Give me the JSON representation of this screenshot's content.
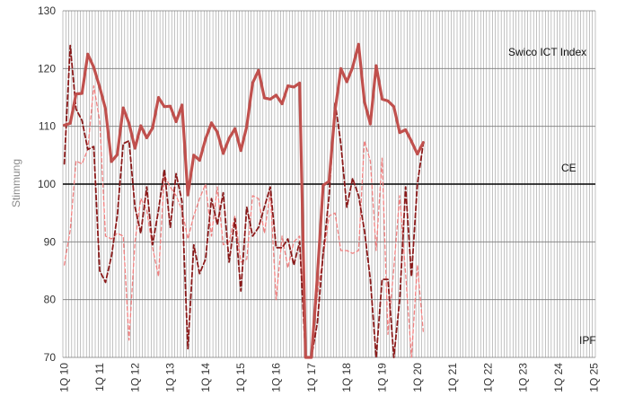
{
  "chart_data": {
    "type": "line",
    "ylabel": "Stimmung",
    "ylim": [
      70,
      130
    ],
    "yticks": [
      70,
      80,
      90,
      100,
      110,
      120,
      130
    ],
    "reference_line": 100,
    "x_labels": [
      "1Q 10",
      "1Q 11",
      "1Q 12",
      "1Q 13",
      "1Q 14",
      "1Q 15",
      "1Q 16",
      "1Q 17",
      "1Q 18",
      "1Q 19",
      "1Q 20",
      "1Q 21",
      "1Q 22",
      "1Q 23",
      "1Q 24",
      "1Q 25"
    ],
    "months_per_step": 2,
    "grid": "vertical every month, horizontal at y ticks",
    "colors": {
      "index": "#c0504d",
      "ce": "#8b1a1a",
      "ipf": "#f08080",
      "grid": "#9a9a9a",
      "ref": "#000000"
    },
    "series": [
      {
        "name": "Swico ICT Index",
        "values": [
          110.2,
          110.5,
          115.6,
          115.7,
          122.5,
          120.2,
          116.8,
          113.0,
          103.9,
          105.1,
          113.2,
          110.5,
          106.2,
          110.1,
          108.0,
          109.7,
          115.0,
          113.4,
          113.5,
          110.8,
          113.7,
          98.1,
          105.0,
          104.1,
          107.8,
          110.6,
          109.0,
          105.3,
          107.9,
          109.6,
          105.8,
          110.0,
          117.5,
          119.7,
          114.9,
          114.7,
          115.4,
          113.9,
          117.0,
          116.8,
          117.5,
          70.0,
          70.0,
          84.0,
          99.8,
          100.5,
          112.7,
          120.0,
          117.7,
          120.2,
          124.2,
          114.3,
          110.4,
          120.5,
          114.7,
          114.4,
          113.4,
          108.9,
          109.4,
          107.4,
          105.2,
          107.2
        ]
      },
      {
        "name": "CE",
        "values": [
          103.5,
          124.0,
          113.0,
          111.0,
          106.0,
          106.5,
          85.0,
          83.0,
          87.5,
          94.5,
          107.0,
          107.5,
          96.0,
          91.5,
          99.5,
          89.5,
          95.5,
          102.5,
          92.5,
          101.8,
          97.0,
          71.5,
          89.5,
          84.5,
          87.0,
          97.5,
          93.0,
          98.5,
          86.5,
          94.0,
          81.5,
          96.0,
          91.0,
          92.5,
          96.0,
          99.5,
          89.0,
          89.0,
          90.5,
          86.0,
          90.0,
          70.0,
          70.0,
          76.0,
          88.0,
          98.0,
          114.2,
          107.0,
          96.0,
          101.0,
          98.0,
          92.0,
          83.5,
          70.0,
          83.5,
          83.5,
          70.0,
          80.0,
          99.5,
          84.0,
          100.0,
          107.0
        ]
      },
      {
        "name": "IPF",
        "values": [
          86.0,
          92.0,
          104.0,
          103.5,
          106.0,
          117.0,
          111.0,
          91.0,
          90.5,
          91.5,
          91.0,
          73.0,
          90.0,
          97.5,
          95.5,
          89.0,
          84.0,
          101.5,
          99.5,
          98.0,
          95.5,
          90.5,
          94.5,
          97.5,
          100.0,
          91.0,
          99.5,
          89.5,
          90.0,
          94.5,
          86.5,
          87.0,
          98.0,
          97.5,
          91.5,
          98.5,
          80.0,
          91.0,
          85.5,
          90.0,
          91.0,
          70.0,
          70.0,
          81.0,
          87.5,
          94.5,
          95.0,
          88.5,
          88.5,
          88.0,
          88.5,
          107.5,
          104.0,
          88.5,
          104.5,
          74.0,
          85.5,
          98.0,
          84.5,
          70.0,
          86.0,
          74.5
        ]
      }
    ],
    "annotations": [
      "Swico ICT Index",
      "CE",
      "IPF"
    ]
  }
}
